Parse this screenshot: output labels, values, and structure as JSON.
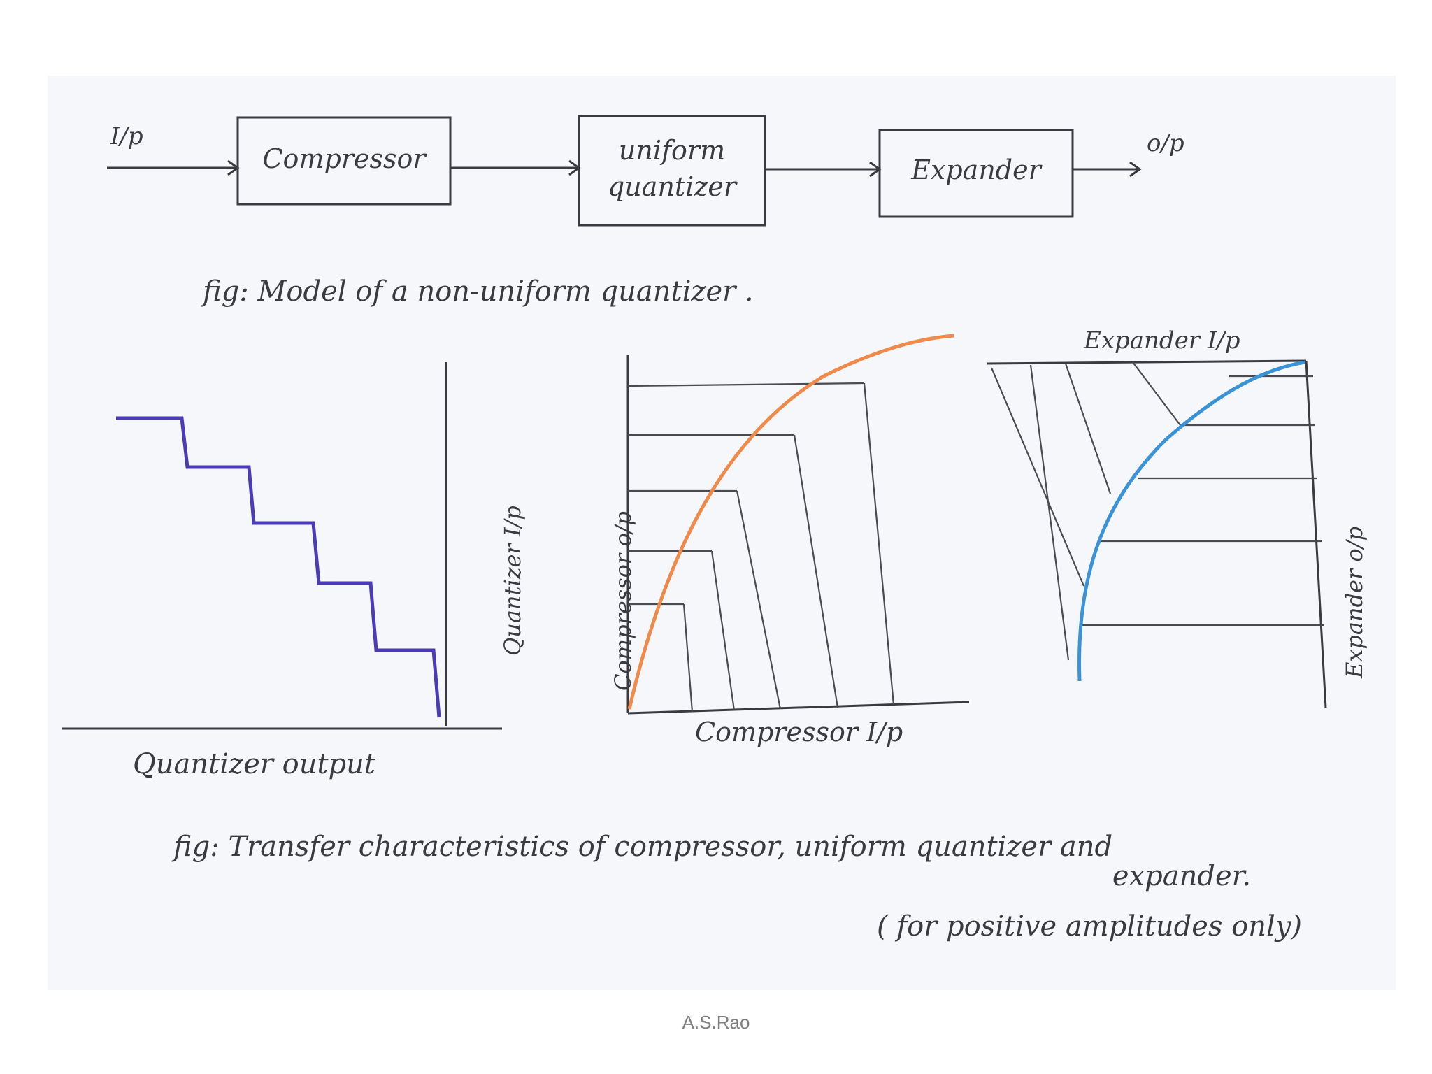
{
  "block_diagram": {
    "input_label": "I/p",
    "blocks": [
      {
        "lines": [
          "Compressor"
        ]
      },
      {
        "lines": [
          "uniform",
          "quantizer"
        ]
      },
      {
        "lines": [
          "Expander"
        ]
      }
    ],
    "output_label": "o/p",
    "caption": "fig: Model of a non-uniform quantizer ."
  },
  "quantizer_plot": {
    "y_label": "Quantizer I/p",
    "x_label": "Quantizer output",
    "color": "#4b3bb5"
  },
  "compressor_plot": {
    "y_label": "Compressor o/p",
    "x_label": "Compressor I/p",
    "color": "#f08a4b"
  },
  "expander_plot": {
    "top_label": "Expander I/p",
    "y_label": "Expander o/p",
    "color": "#3a93d6"
  },
  "caption": {
    "line1": "fig: Transfer characteristics of compressor, uniform quantizer and",
    "line2": "expander.",
    "line3": "( for positive amplitudes only)"
  },
  "footer": "A.S.Rao",
  "colors": {
    "ink": "#3a3a40",
    "paper": "#f6f7fb"
  }
}
